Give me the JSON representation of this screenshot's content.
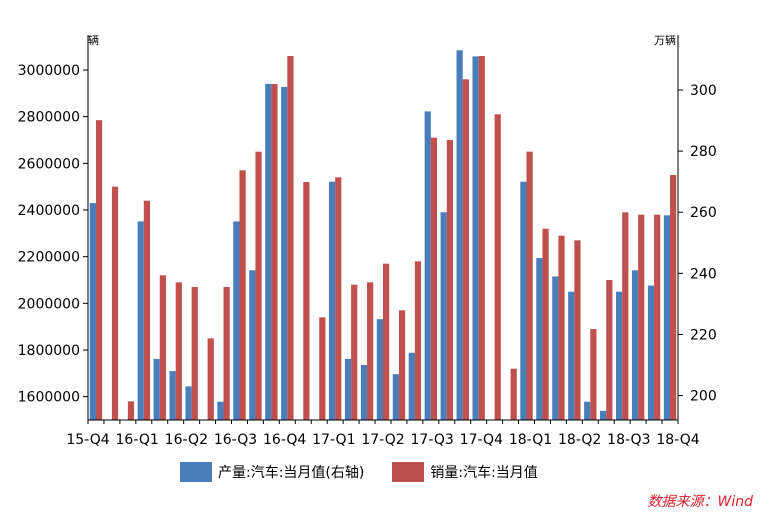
{
  "chart_data": {
    "type": "bar",
    "x_tick_labels": [
      "15-Q4",
      "16-Q1",
      "16-Q2",
      "16-Q3",
      "16-Q4",
      "17-Q1",
      "17-Q2",
      "17-Q3",
      "17-Q4",
      "18-Q1",
      "18-Q2",
      "18-Q3",
      "18-Q4"
    ],
    "y_left": {
      "unit": "辆",
      "ticks": [
        1600000,
        1800000,
        2000000,
        2200000,
        2400000,
        2600000,
        2800000,
        3000000
      ],
      "lim": [
        1500000,
        3150000
      ]
    },
    "y_right": {
      "unit": "万辆",
      "ticks": [
        200,
        220,
        240,
        260,
        280,
        300
      ],
      "lim": [
        192,
        318
      ]
    },
    "series": [
      {
        "name": "产量:汽车:当月值(右轴)",
        "axis": "right",
        "color": "#4a7ebb",
        "values": [
          263,
          null,
          null,
          257,
          212,
          208,
          203,
          192,
          198,
          257,
          241,
          302,
          301,
          null,
          null,
          270,
          212,
          210,
          225,
          207,
          214,
          293,
          260,
          313,
          311,
          null,
          null,
          270,
          245,
          239,
          234,
          198,
          195,
          234,
          241,
          236,
          259
        ]
      },
      {
        "name": "销量:汽车:当月值",
        "axis": "left",
        "color": "#c0504d",
        "values": [
          2785000,
          2500000,
          1580000,
          2440000,
          2120000,
          2090000,
          2070000,
          1850000,
          2070000,
          2570000,
          2650000,
          2940000,
          3060000,
          2520000,
          1940000,
          2540000,
          2080000,
          2090000,
          2170000,
          1970000,
          2180000,
          2710000,
          2700000,
          2960000,
          3060000,
          2810000,
          1720000,
          2650000,
          2320000,
          2290000,
          2270000,
          1890000,
          2100000,
          2390000,
          2380000,
          2380000,
          2550000
        ]
      }
    ]
  },
  "legend": {
    "production_label": "产量:汽车:当月值(右轴)",
    "sales_label": "销量:汽车:当月值"
  },
  "source": "数据来源：Wind"
}
